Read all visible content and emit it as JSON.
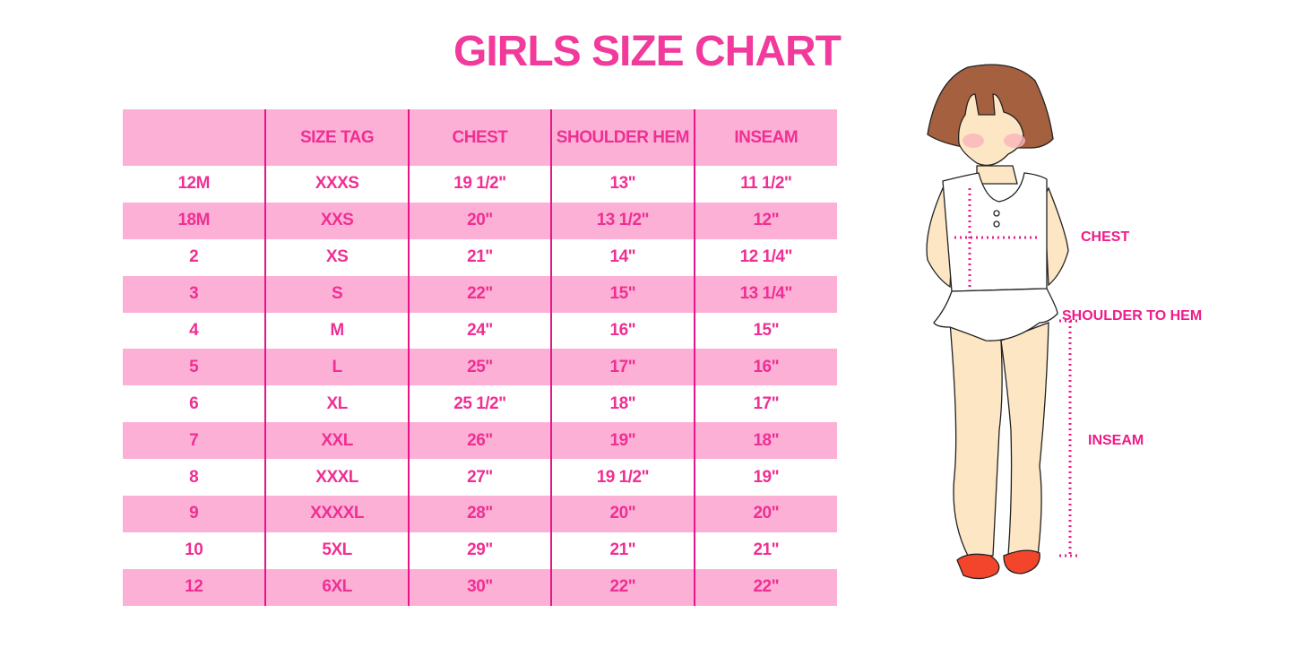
{
  "title": "GIRLS SIZE CHART",
  "table": {
    "headers": [
      "",
      "SIZE TAG",
      "CHEST",
      "SHOULDER HEM",
      "INSEAM"
    ],
    "rows": [
      [
        "12M",
        "XXXS",
        "19 1/2\"",
        "13\"",
        "11 1/2\""
      ],
      [
        "18M",
        "XXS",
        "20\"",
        "13 1/2\"",
        "12\""
      ],
      [
        "2",
        "XS",
        "21\"",
        "14\"",
        "12 1/4\""
      ],
      [
        "3",
        "S",
        "22\"",
        "15\"",
        "13 1/4\""
      ],
      [
        "4",
        "M",
        "24\"",
        "16\"",
        "15\""
      ],
      [
        "5",
        "L",
        "25\"",
        "17\"",
        "16\""
      ],
      [
        "6",
        "XL",
        "25 1/2\"",
        "18\"",
        "17\""
      ],
      [
        "7",
        "XXL",
        "26\"",
        "19\"",
        "18\""
      ],
      [
        "8",
        "XXXL",
        "27\"",
        "19 1/2\"",
        "19\""
      ],
      [
        "9",
        "XXXXL",
        "28\"",
        "20\"",
        "20\""
      ],
      [
        "10",
        "5XL",
        "29\"",
        "21\"",
        "21\""
      ],
      [
        "12",
        "6XL",
        "30\"",
        "22\"",
        "22\""
      ]
    ]
  },
  "diagram": {
    "labels": {
      "chest": "CHEST",
      "shoulder_to_hem": "SHOULDER TO HEM",
      "inseam": "INSEAM"
    },
    "colors": {
      "accent": "#ef1b8a",
      "stripe": "#fdb0d6",
      "hair": "#a5603f",
      "skin": "#fde6c4",
      "shoes": "#f2452b"
    }
  }
}
